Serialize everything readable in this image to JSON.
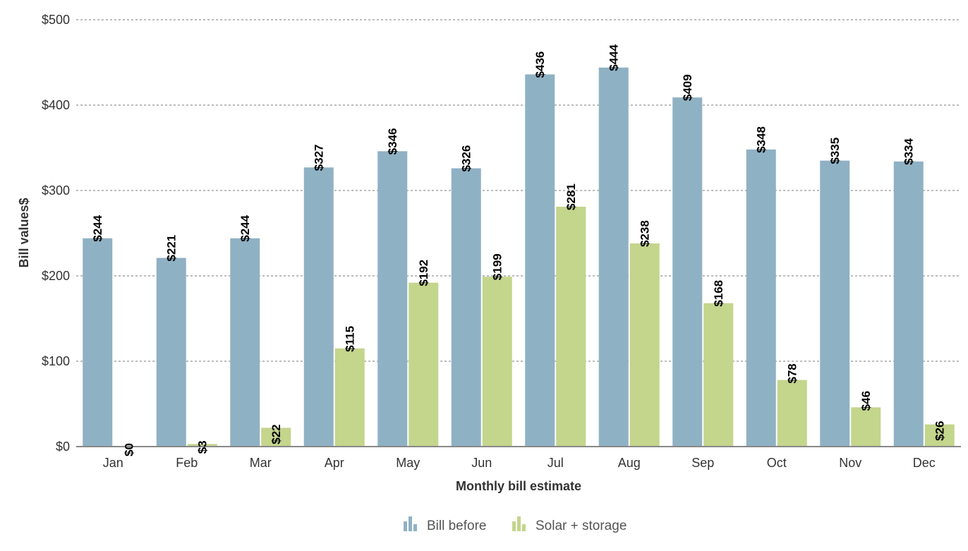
{
  "chart_data": {
    "type": "bar",
    "categories": [
      "Jan",
      "Feb",
      "Mar",
      "Apr",
      "May",
      "Jun",
      "Jul",
      "Aug",
      "Sep",
      "Oct",
      "Nov",
      "Dec"
    ],
    "series": [
      {
        "name": "Bill before",
        "color": "#8fb1c4",
        "values": [
          244,
          221,
          244,
          327,
          346,
          326,
          436,
          444,
          409,
          348,
          335,
          334
        ],
        "labels": [
          "$244",
          "$221",
          "$244",
          "$327",
          "$346",
          "$326",
          "$436",
          "$444",
          "$409",
          "$348",
          "$335",
          "$334"
        ]
      },
      {
        "name": "Solar + storage",
        "color": "#c4d58c",
        "values": [
          0,
          3,
          22,
          115,
          192,
          199,
          281,
          238,
          168,
          78,
          46,
          26
        ],
        "labels": [
          "$0",
          "$3",
          "$22",
          "$115",
          "$192",
          "$199",
          "$281",
          "$238",
          "$168",
          "$78",
          "$46",
          "$26"
        ]
      }
    ],
    "xlabel": "Monthly bill estimate",
    "ylabel": "Bill values$",
    "ylim": [
      0,
      500
    ],
    "yticks": [
      0,
      100,
      200,
      300,
      400,
      500
    ],
    "ytick_labels": [
      "$0",
      "$100",
      "$200",
      "$300",
      "$400",
      "$500"
    ],
    "grid": true,
    "legend_position": "bottom-center"
  }
}
